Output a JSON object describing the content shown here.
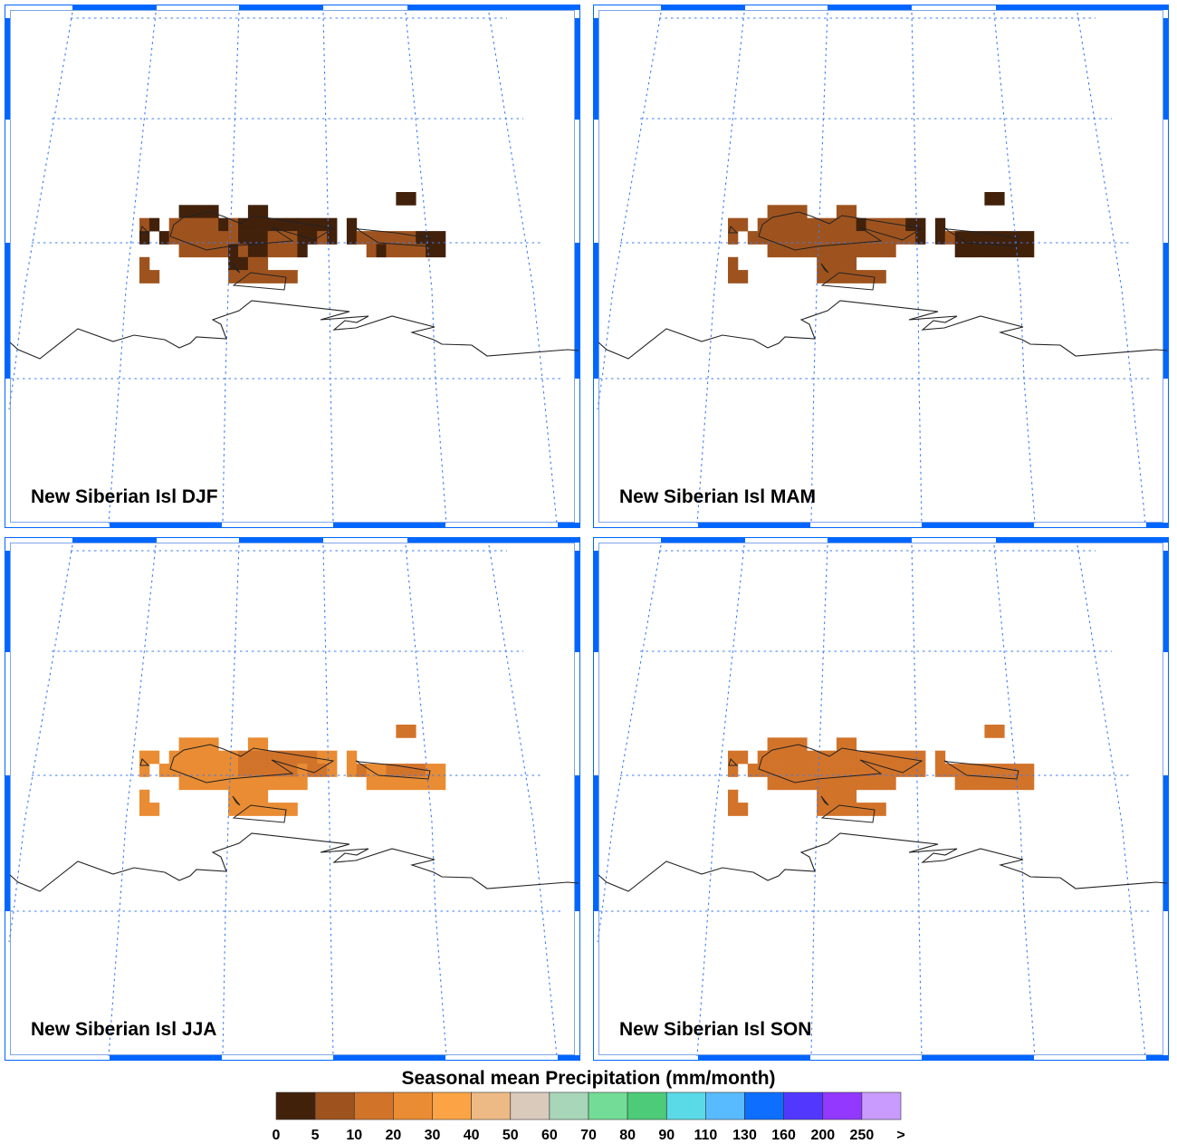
{
  "colorbar": {
    "title": "Seasonal mean Precipitation (mm/month)",
    "tick_labels": [
      "0",
      "5",
      "10",
      "20",
      "30",
      "40",
      "50",
      "60",
      "70",
      "80",
      "90",
      "110",
      "130",
      "160",
      "200",
      "250",
      ">"
    ],
    "colors": [
      "#42210B",
      "#9E531E",
      "#D2732A",
      "#E98C33",
      "#FCA445",
      "#EDBA86",
      "#D9CABC",
      "#A7D6B8",
      "#73DC96",
      "#4DCB78",
      "#5ADAE6",
      "#59BBFF",
      "#0D6EFF",
      "#5238FF",
      "#9238FF",
      "#C99BFF"
    ]
  },
  "style": {
    "gridline_color": "#3C7CF0",
    "frame_color": "#0066FF",
    "coastline_color": "#222222"
  },
  "panels": [
    {
      "label": "New Siberian Isl DJF",
      "season": "DJF",
      "grid": [
        "..........................00...",
        "....0000...00..................",
        "10.11111010000000000.0.........",
        "0.011111110001110010.0111111000",
        "....1111101001110......10111100",
        "1........0011..................",
        "11.......1111111..............."
      ]
    },
    {
      "label": "New Siberian Isl MAM",
      "season": "MAM",
      "grid": [
        "..........................00...",
        "....1111...11..................",
        "11.11111111110111100.0.........",
        "1.111111111111111110.0100000000",
        "....1111111111111......00000000",
        "1........1111..................",
        "11.......1111111..............."
      ]
    },
    {
      "label": "New Siberian Isl JJA",
      "season": "JJA",
      "grid": [
        "..........................22...",
        "....3333...33..................",
        "33.33333332222222233.3.........",
        "3.333333332222223223.3233222233",
        "....3333333333333......33333333",
        "3........3333..................",
        "33.......3333333..............."
      ]
    },
    {
      "label": "New Siberian Isl SON",
      "season": "SON",
      "grid": [
        "..........................22...",
        "....2222...22..................",
        "22.22222222222222222.2.........",
        "2.222222222222222222.2222222222",
        "....2222222222222......22222222",
        "2........2222..................",
        "22.......2222222..............."
      ]
    }
  ]
}
